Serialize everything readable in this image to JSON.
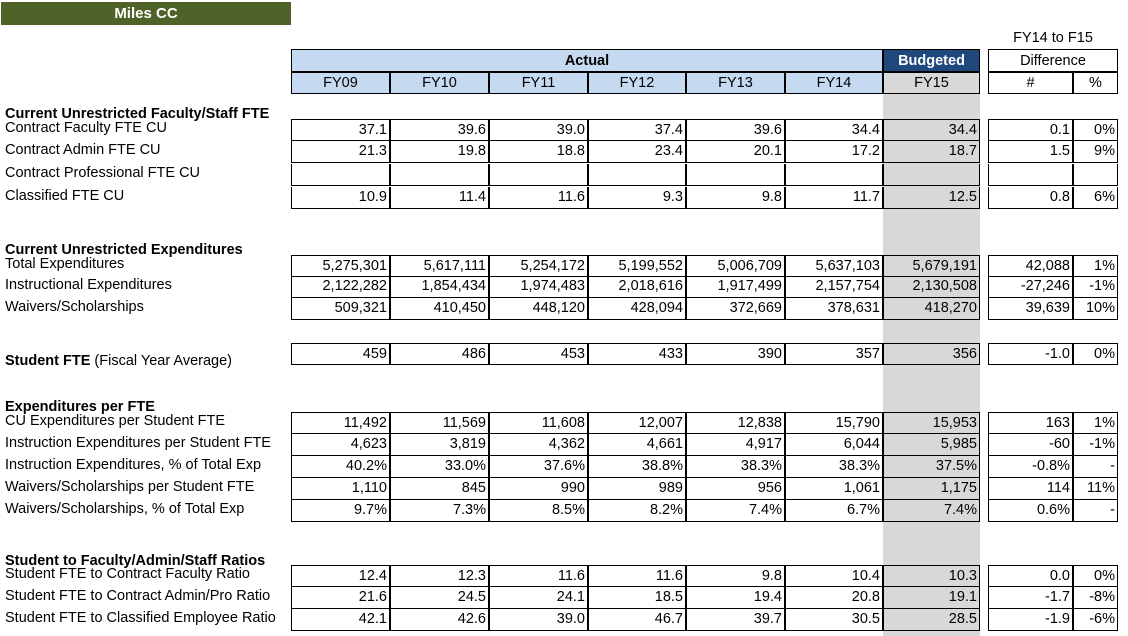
{
  "title": "Miles CC",
  "header": {
    "diff_top": "FY14 to F15",
    "diff_label": "Difference",
    "actual": "Actual",
    "budgeted": "Budgeted",
    "years": [
      "FY09",
      "FY10",
      "FY11",
      "FY12",
      "FY13",
      "FY14",
      "FY15"
    ],
    "diff_cols": [
      "#",
      "%"
    ]
  },
  "sections": [
    {
      "title": "Current Unrestricted Faculty/Staff FTE",
      "rows": [
        {
          "label": "Contract Faculty FTE CU",
          "values": [
            "37.1",
            "39.6",
            "39.0",
            "37.4",
            "39.6",
            "34.4",
            "34.4",
            "0.1",
            "0%"
          ]
        },
        {
          "label": "Contract Admin FTE CU",
          "values": [
            "21.3",
            "19.8",
            "18.8",
            "23.4",
            "20.1",
            "17.2",
            "18.7",
            "1.5",
            "9%"
          ]
        },
        {
          "label": "Contract Professional FTE CU",
          "values": [
            "",
            "",
            "",
            "",
            "",
            "",
            "",
            "",
            ""
          ]
        },
        {
          "label": "Classified FTE CU",
          "values": [
            "10.9",
            "11.4",
            "11.6",
            "9.3",
            "9.8",
            "11.7",
            "12.5",
            "0.8",
            "6%"
          ]
        }
      ]
    },
    {
      "title": "Current Unrestricted Expenditures",
      "rows": [
        {
          "label": "Total Expenditures",
          "values": [
            "5,275,301",
            "5,617,111",
            "5,254,172",
            "5,199,552",
            "5,006,709",
            "5,637,103",
            "5,679,191",
            "42,088",
            "1%"
          ]
        },
        {
          "label": "Instructional Expenditures",
          "values": [
            "2,122,282",
            "1,854,434",
            "1,974,483",
            "2,018,616",
            "1,917,499",
            "2,157,754",
            "2,130,508",
            "-27,246",
            "-1%"
          ]
        },
        {
          "label": "Waivers/Scholarships",
          "values": [
            "509,321",
            "410,450",
            "448,120",
            "428,094",
            "372,669",
            "378,631",
            "418,270",
            "39,639",
            "10%"
          ]
        }
      ]
    },
    {
      "title": "Student FTE",
      "title_suffix": " (Fiscal Year Average)",
      "rows": [
        {
          "label": "",
          "values": [
            "459",
            "486",
            "453",
            "433",
            "390",
            "357",
            "356",
            "-1.0",
            "0%"
          ]
        }
      ]
    },
    {
      "title": "Expenditures per FTE",
      "rows": [
        {
          "label": "CU Expenditures per Student FTE",
          "values": [
            "11,492",
            "11,569",
            "11,608",
            "12,007",
            "12,838",
            "15,790",
            "15,953",
            "163",
            "1%"
          ]
        },
        {
          "label": "Instruction Expenditures per Student FTE",
          "values": [
            "4,623",
            "3,819",
            "4,362",
            "4,661",
            "4,917",
            "6,044",
            "5,985",
            "-60",
            "-1%"
          ]
        },
        {
          "label": "Instruction Expenditures, % of Total Exp",
          "values": [
            "40.2%",
            "33.0%",
            "37.6%",
            "38.8%",
            "38.3%",
            "38.3%",
            "37.5%",
            "-0.8%",
            "-"
          ]
        },
        {
          "label": "Waivers/Scholarships per Student FTE",
          "values": [
            "1,110",
            "845",
            "990",
            "989",
            "956",
            "1,061",
            "1,175",
            "114",
            "11%"
          ]
        },
        {
          "label": "Waivers/Scholarships, % of Total Exp",
          "values": [
            "9.7%",
            "7.3%",
            "8.5%",
            "8.2%",
            "7.4%",
            "6.7%",
            "7.4%",
            "0.6%",
            "-"
          ]
        }
      ]
    },
    {
      "title": "Student to Faculty/Admin/Staff Ratios",
      "rows": [
        {
          "label": "Student FTE to Contract Faculty Ratio",
          "values": [
            "12.4",
            "12.3",
            "11.6",
            "11.6",
            "9.8",
            "10.4",
            "10.3",
            "0.0",
            "0%"
          ]
        },
        {
          "label": "Student FTE to Contract Admin/Pro Ratio",
          "values": [
            "21.6",
            "24.5",
            "24.1",
            "18.5",
            "19.4",
            "20.8",
            "19.1",
            "-1.7",
            "-8%"
          ]
        },
        {
          "label": "Student FTE to Classified Employee Ratio",
          "values": [
            "42.1",
            "42.6",
            "39.0",
            "46.7",
            "39.7",
            "30.5",
            "28.5",
            "-1.9",
            "-6%"
          ]
        }
      ]
    }
  ]
}
